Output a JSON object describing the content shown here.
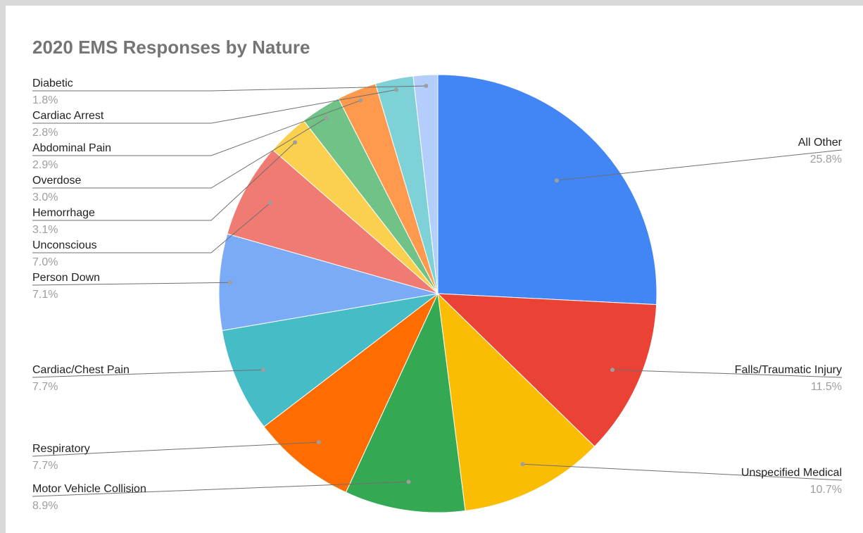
{
  "chart_data": {
    "type": "pie",
    "title": "2020 EMS Responses by Nature",
    "slices": [
      {
        "label": "All Other",
        "percent": "25.8%",
        "value": 25.8,
        "color": "#4285F4"
      },
      {
        "label": "Falls/Traumatic Injury",
        "percent": "11.5%",
        "value": 11.5,
        "color": "#EA4335"
      },
      {
        "label": "Unspecified Medical",
        "percent": "10.7%",
        "value": 10.7,
        "color": "#FBBC04"
      },
      {
        "label": "Motor Vehicle Collision",
        "percent": "8.9%",
        "value": 8.9,
        "color": "#34A853"
      },
      {
        "label": "Respiratory",
        "percent": "7.7%",
        "value": 7.7,
        "color": "#FF6D01"
      },
      {
        "label": "Cardiac/Chest Pain",
        "percent": "7.7%",
        "value": 7.7,
        "color": "#46BDC6"
      },
      {
        "label": "Person Down",
        "percent": "7.1%",
        "value": 7.1,
        "color": "#7BAAF7"
      },
      {
        "label": "Unconscious",
        "percent": "7.0%",
        "value": 7.0,
        "color": "#F07B72"
      },
      {
        "label": "Hemorrhage",
        "percent": "3.1%",
        "value": 3.1,
        "color": "#FCD04F"
      },
      {
        "label": "Overdose",
        "percent": "3.0%",
        "value": 3.0,
        "color": "#71C287"
      },
      {
        "label": "Abdominal Pain",
        "percent": "2.9%",
        "value": 2.9,
        "color": "#FF994D"
      },
      {
        "label": "Cardiac Arrest",
        "percent": "2.8%",
        "value": 2.8,
        "color": "#7ED1D7"
      },
      {
        "label": "Diabetic",
        "percent": "1.8%",
        "value": 1.8,
        "color": "#B3CEFB"
      }
    ],
    "legend": "none",
    "labels": "outside with leader lines"
  }
}
